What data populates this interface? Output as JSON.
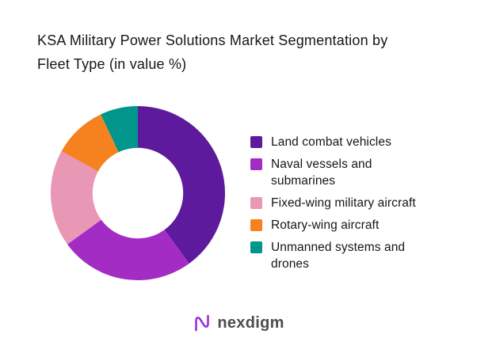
{
  "header": {
    "title_line1": "KSA Military Power Solutions Market Segmentation by",
    "title_line2": "Fleet Type (in value %)"
  },
  "chart_data": {
    "type": "pie",
    "variant": "donut",
    "title": "KSA Military Power Solutions Market Segmentation by Fleet Type (in value %)",
    "categories": [
      "Land combat vehicles",
      "Naval vessels and submarines",
      "Fixed-wing military aircraft",
      "Rotary-wing aircraft",
      "Unmanned systems and drones"
    ],
    "values": [
      40,
      25,
      18,
      10,
      7
    ],
    "colors": [
      "#5E1A9C",
      "#A32CC4",
      "#E897B4",
      "#F5821F",
      "#00968B"
    ],
    "start_angle_deg": 0,
    "direction": "clockwise",
    "inner_radius_ratio": 0.52,
    "legend_position": "right",
    "data_labels": "none"
  },
  "legend": {
    "items": [
      {
        "color": "#5E1A9C",
        "label_lines": [
          "Land combat vehicles"
        ]
      },
      {
        "color": "#A32CC4",
        "label_lines": [
          "Naval vessels and",
          "submarines"
        ]
      },
      {
        "color": "#E897B4",
        "label_lines": [
          "Fixed-wing military aircraft"
        ]
      },
      {
        "color": "#F5821F",
        "label_lines": [
          "Rotary-wing aircraft"
        ]
      },
      {
        "color": "#00968B",
        "label_lines": [
          "Unmanned systems and",
          "drones"
        ]
      }
    ]
  },
  "footer": {
    "logo_text": "nexdigm",
    "logo_icon_color": "#9B30D9"
  }
}
